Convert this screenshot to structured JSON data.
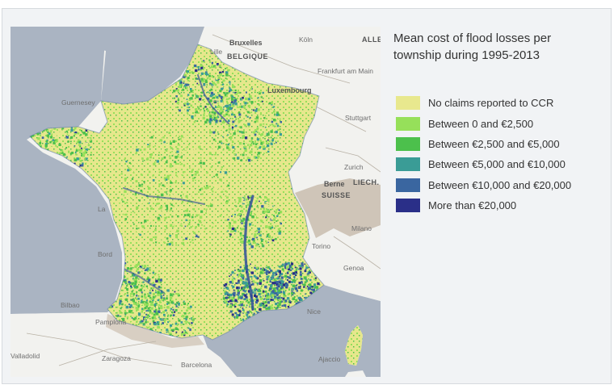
{
  "title": "Mean cost of flood losses per township during 1995-2013",
  "legend": {
    "items": [
      {
        "label": "No claims reported to CCR",
        "color": "#e8e88e"
      },
      {
        "label": "Between 0 and €2,500",
        "color": "#96e05a"
      },
      {
        "label": "Between €2,500 and €5,000",
        "color": "#4cc04c"
      },
      {
        "label": "Between €5,000 and €10,000",
        "color": "#3a9c96"
      },
      {
        "label": "Between €10,000 and €20,000",
        "color": "#3a66a0"
      },
      {
        "label": "More than €20,000",
        "color": "#2a2f88"
      }
    ]
  },
  "basemap": {
    "land_color": "#f3f3f1",
    "sea_color": "#aab4c2",
    "mountain_color": "#cdc4b8",
    "labels": [
      {
        "text": "Bruxelles",
        "style": "bold"
      },
      {
        "text": "BELGIQUE",
        "style": "caps"
      },
      {
        "text": "Köln",
        "style": ""
      },
      {
        "text": "ALLE",
        "style": "caps"
      },
      {
        "text": "Lille",
        "style": ""
      },
      {
        "text": "Frankfurt am Main",
        "style": ""
      },
      {
        "text": "Luxembourg",
        "style": "bold"
      },
      {
        "text": "Guernesey",
        "style": ""
      },
      {
        "text": "Stuttgart",
        "style": ""
      },
      {
        "text": "Zurich",
        "style": ""
      },
      {
        "text": "Berne",
        "style": "bold"
      },
      {
        "text": "LIECH.",
        "style": "caps"
      },
      {
        "text": "SUISSE",
        "style": "caps"
      },
      {
        "text": "Milano",
        "style": ""
      },
      {
        "text": "Torino",
        "style": ""
      },
      {
        "text": "Genoa",
        "style": ""
      },
      {
        "text": "Bilbao",
        "style": ""
      },
      {
        "text": "Pamplona",
        "style": ""
      },
      {
        "text": "Nice",
        "style": ""
      },
      {
        "text": "Zaragoza",
        "style": ""
      },
      {
        "text": "Barcelona",
        "style": ""
      },
      {
        "text": "Valladolid",
        "style": ""
      },
      {
        "text": "Ajaccio",
        "style": ""
      },
      {
        "text": "Bord",
        "style": ""
      },
      {
        "text": "La",
        "style": ""
      }
    ]
  }
}
